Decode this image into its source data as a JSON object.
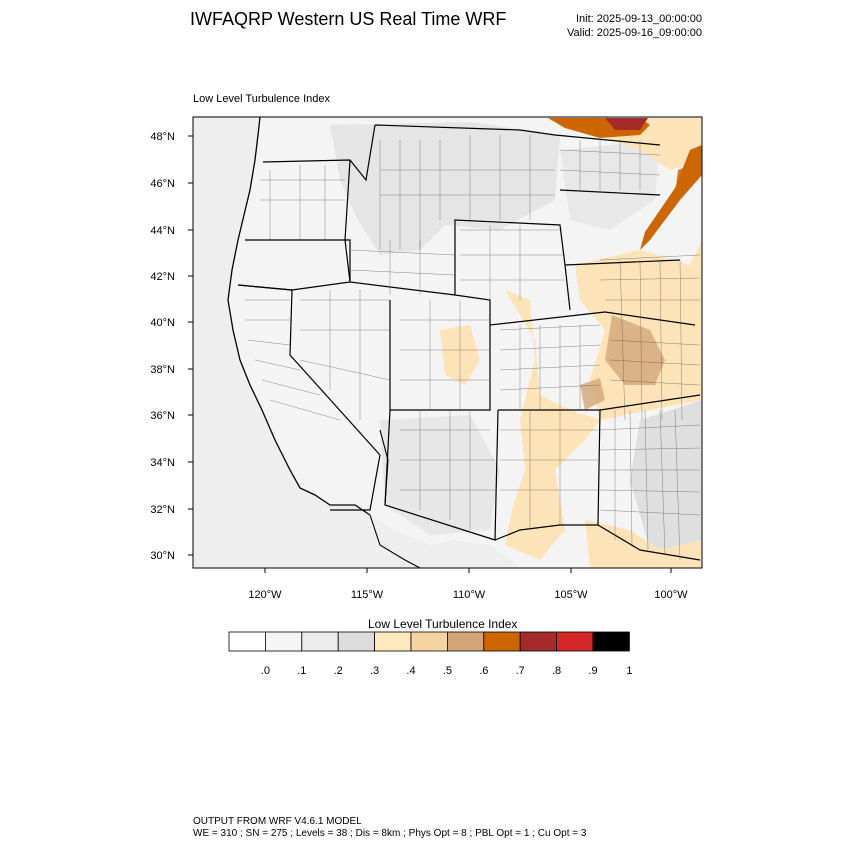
{
  "header": {
    "title": "IWFAQRP Western US Real Time WRF",
    "init": "Init: 2025-09-13_00:00:00",
    "valid": "Valid: 2025-09-16_09:00:00"
  },
  "panel": {
    "title": "Low Level Turbulence Index"
  },
  "map": {
    "lat_labels": [
      "48°N",
      "46°N",
      "44°N",
      "42°N",
      "40°N",
      "38°N",
      "36°N",
      "34°N",
      "32°N",
      "30°N"
    ],
    "lon_labels": [
      "120°W",
      "115°W",
      "110°W",
      "105°W",
      "100°W"
    ],
    "colors": {
      "ocean": "#eeeeee",
      "land": "#f2f2f2",
      "low": "#dcdcdc",
      "mid": "#fde4b8",
      "high": "#d2a679",
      "peak": "#cc6600",
      "max": "#a52a2a"
    }
  },
  "colorbar": {
    "title": "Low Level Turbulence Index",
    "colors": [
      "#ffffff",
      "#f5f5f5",
      "#ececec",
      "#dcdcdc",
      "#fde8c0",
      "#f5d4a0",
      "#d2a679",
      "#cc6600",
      "#a52a2a",
      "#d62728",
      "#000000"
    ],
    "tick_labels": [
      ".0",
      ".1",
      ".2",
      ".3",
      ".4",
      ".5",
      ".6",
      ".7",
      ".8",
      ".9",
      "1"
    ]
  },
  "footer": {
    "line1": "OUTPUT FROM WRF V4.6.1 MODEL",
    "line2": "WE = 310 ; SN = 275 ; Levels = 38 ; Dis = 8km ; Phys Opt = 8 ; PBL Opt = 1 ; Cu Opt = 3"
  }
}
